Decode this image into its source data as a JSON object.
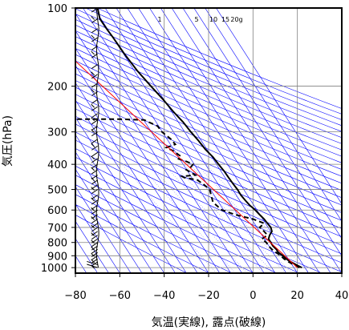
{
  "chart_data": {
    "type": "line",
    "title": "",
    "xlabel": "気温(実線), 露点(破線)",
    "ylabel": "気圧(hPa)",
    "xlim": [
      -80,
      40
    ],
    "ylim_hpa": [
      1050,
      100
    ],
    "y_scale": "log",
    "grid": true,
    "x_ticks": [
      "−80",
      "−60",
      "−40",
      "−20",
      "0",
      "20",
      "40"
    ],
    "x_tick_values": [
      -80,
      -60,
      -40,
      -20,
      0,
      20,
      40
    ],
    "y_ticks": [
      "100",
      "200",
      "300",
      "400",
      "500",
      "600",
      "700",
      "800",
      "900",
      "1000"
    ],
    "y_tick_values": [
      100,
      200,
      300,
      400,
      500,
      600,
      700,
      800,
      900,
      1000
    ],
    "mixing_ratio_labels": [
      {
        "label": "1",
        "value": 1
      },
      {
        "label": "5",
        "value": 5
      },
      {
        "label": "10",
        "value": 10
      },
      {
        "label": "15",
        "value": 15
      },
      {
        "label": "20g",
        "value": 20
      }
    ],
    "series": [
      {
        "role": "temperature",
        "style": "solid",
        "color": "#000000",
        "points": [
          [
            1000,
            22
          ],
          [
            975,
            19.5
          ],
          [
            950,
            17
          ],
          [
            925,
            15
          ],
          [
            900,
            13.5
          ],
          [
            875,
            11.5
          ],
          [
            850,
            10.5
          ],
          [
            825,
            9
          ],
          [
            800,
            8
          ],
          [
            775,
            7
          ],
          [
            750,
            7.5
          ],
          [
            725,
            8.5
          ],
          [
            700,
            8
          ],
          [
            675,
            6.5
          ],
          [
            650,
            5
          ],
          [
            625,
            3
          ],
          [
            600,
            1
          ],
          [
            575,
            -1.5
          ],
          [
            550,
            -3.5
          ],
          [
            525,
            -5.5
          ],
          [
            500,
            -7
          ],
          [
            475,
            -9
          ],
          [
            450,
            -11
          ],
          [
            425,
            -13
          ],
          [
            400,
            -15.5
          ],
          [
            375,
            -18
          ],
          [
            350,
            -21.5
          ],
          [
            325,
            -24.5
          ],
          [
            300,
            -28
          ],
          [
            275,
            -31.5
          ],
          [
            250,
            -36
          ],
          [
            225,
            -40.5
          ],
          [
            200,
            -46
          ],
          [
            175,
            -52
          ],
          [
            150,
            -58
          ],
          [
            130,
            -63
          ],
          [
            120,
            -66
          ],
          [
            110,
            -69
          ],
          [
            100,
            -70
          ]
        ]
      },
      {
        "role": "dewpoint",
        "style": "dashed",
        "color": "#000000",
        "points": [
          [
            1000,
            21
          ],
          [
            975,
            18.5
          ],
          [
            950,
            16
          ],
          [
            925,
            14
          ],
          [
            900,
            12.5
          ],
          [
            875,
            10.5
          ],
          [
            850,
            8.5
          ],
          [
            825,
            7
          ],
          [
            800,
            6
          ],
          [
            775,
            4
          ],
          [
            750,
            6.5
          ],
          [
            725,
            5
          ],
          [
            700,
            3
          ],
          [
            675,
            5
          ],
          [
            650,
            0
          ],
          [
            625,
            -8
          ],
          [
            600,
            -14
          ],
          [
            580,
            -16
          ],
          [
            560,
            -18
          ],
          [
            540,
            -18.5
          ],
          [
            520,
            -19
          ],
          [
            500,
            -19.5
          ],
          [
            480,
            -22
          ],
          [
            460,
            -25
          ],
          [
            450,
            -31
          ],
          [
            445,
            -32
          ],
          [
            440,
            -26
          ],
          [
            430,
            -28
          ],
          [
            420,
            -30
          ],
          [
            410,
            -28
          ],
          [
            400,
            -27
          ],
          [
            390,
            -30
          ],
          [
            380,
            -34
          ],
          [
            370,
            -33
          ],
          [
            355,
            -36
          ],
          [
            345,
            -39
          ],
          [
            335,
            -35
          ],
          [
            320,
            -37
          ],
          [
            300,
            -41
          ],
          [
            285,
            -43
          ],
          [
            275,
            -47
          ],
          [
            270,
            -49
          ],
          [
            268,
            -60
          ],
          [
            268,
            -70
          ],
          [
            268,
            -80
          ]
        ]
      },
      {
        "role": "reference",
        "style": "solid",
        "color": "#ff0000",
        "points": [
          [
            1000,
            20
          ],
          [
            160,
            -80
          ]
        ]
      }
    ],
    "wind_barbs": {
      "x": -70,
      "color": "#000000",
      "pressures": [
        1000,
        975,
        950,
        925,
        900,
        875,
        850,
        825,
        800,
        775,
        750,
        725,
        700,
        675,
        650,
        625,
        600,
        575,
        550,
        525,
        500,
        480,
        460,
        440,
        420,
        400,
        380,
        360,
        340,
        320,
        300,
        285,
        270,
        255,
        240,
        225,
        210,
        195,
        180,
        165,
        150,
        140,
        130,
        120,
        110,
        100
      ]
    },
    "isotherm_spacing_c": 5,
    "isotherm_skew_c_per_decade": 75,
    "dry_adiabat_thetas_k": [
      240,
      250,
      260,
      270,
      280,
      290,
      300,
      310,
      320,
      330,
      340,
      350,
      360,
      370,
      380,
      390,
      400,
      410,
      420,
      430,
      440,
      450,
      460,
      470,
      480,
      490,
      500,
      510,
      520,
      530,
      540
    ],
    "mixing_ratio_lines_g": [
      1,
      2,
      3,
      5,
      7,
      10,
      12,
      15,
      20
    ],
    "grid_color": "#808080",
    "isotherm_color": "#0000ff"
  }
}
